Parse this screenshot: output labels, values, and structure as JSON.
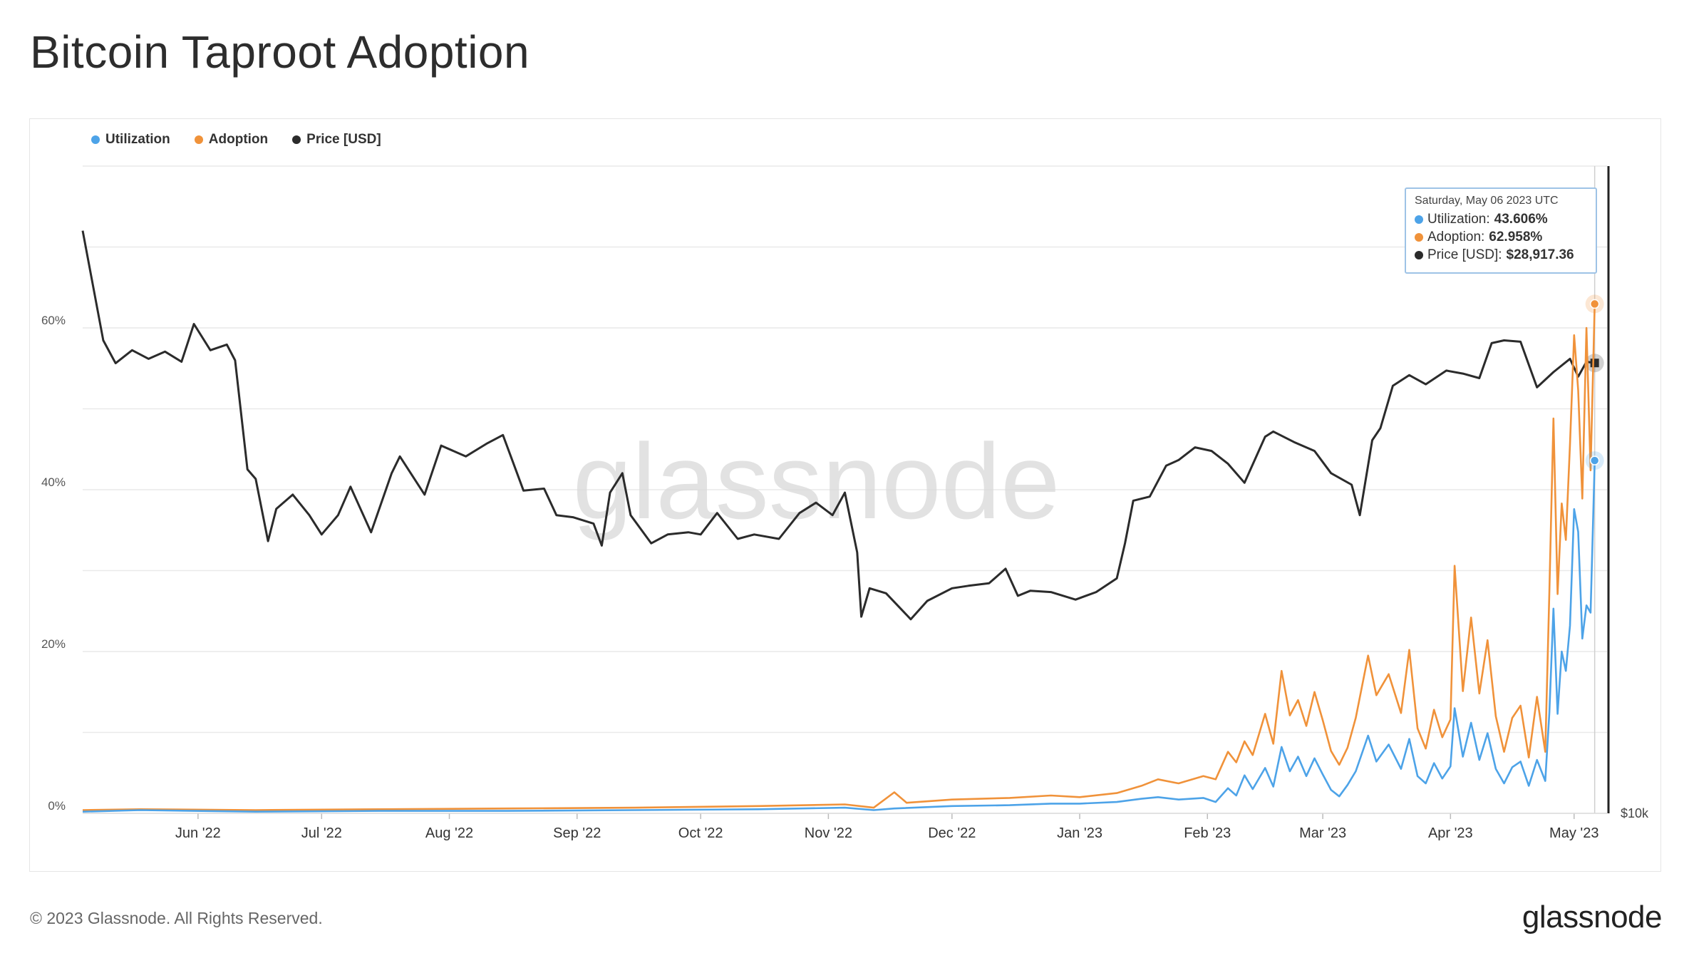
{
  "page": {
    "title": "Bitcoin Taproot Adoption",
    "copyright": "© 2023 Glassnode. All Rights Reserved.",
    "logo_text": "glassnode",
    "watermark": "glassnode"
  },
  "colors": {
    "utilization": "#4da3e8",
    "adoption": "#f0923a",
    "price": "#2b2b2b",
    "grid": "#e9e9e9",
    "watermark": "#d9d9d9"
  },
  "legend": [
    {
      "label": "Utilization",
      "color": "#4da3e8"
    },
    {
      "label": "Adoption",
      "color": "#f0923a"
    },
    {
      "label": "Price [USD]",
      "color": "#2b2b2b"
    }
  ],
  "tooltip": {
    "date": "Saturday, May 06 2023 UTC",
    "rows": [
      {
        "label": "Utilization:",
        "value": "43.606%",
        "color": "#4da3e8"
      },
      {
        "label": "Adoption:",
        "value": "62.958%",
        "color": "#f0923a"
      },
      {
        "label": "Price [USD]:",
        "value": "$28,917.36",
        "color": "#2b2b2b"
      }
    ]
  },
  "chart_data": {
    "type": "line",
    "x_ticks": [
      "Jun '22",
      "Jul '22",
      "Aug '22",
      "Sep '22",
      "Oct '22",
      "Nov '22",
      "Dec '22",
      "Jan '23",
      "Feb '23",
      "Mar '23",
      "Apr '23",
      "May '23"
    ],
    "x_tick_dates": [
      "2022-06-01",
      "2022-07-01",
      "2022-08-01",
      "2022-09-01",
      "2022-10-01",
      "2022-11-01",
      "2022-12-01",
      "2023-01-01",
      "2023-02-01",
      "2023-03-01",
      "2023-04-01",
      "2023-05-01"
    ],
    "x_range": [
      "2022-05-04",
      "2023-05-09"
    ],
    "y_left_ticks": [
      "0%",
      "20%",
      "40%",
      "60%"
    ],
    "y_left_range": [
      0,
      80
    ],
    "y_right_ticks": [
      "$10k"
    ],
    "y_right_scale": "log",
    "y_right_range": [
      10000,
      46000
    ],
    "grid": true,
    "legend_position": "top-left",
    "series": [
      {
        "name": "Price [USD]",
        "axis": "right",
        "points": [
          [
            "2022-05-04",
            39500
          ],
          [
            "2022-05-09",
            30500
          ],
          [
            "2022-05-12",
            28900
          ],
          [
            "2022-05-16",
            29800
          ],
          [
            "2022-05-20",
            29200
          ],
          [
            "2022-05-24",
            29700
          ],
          [
            "2022-05-28",
            29000
          ],
          [
            "2022-05-31",
            31700
          ],
          [
            "2022-06-04",
            29800
          ],
          [
            "2022-06-08",
            30200
          ],
          [
            "2022-06-10",
            29100
          ],
          [
            "2022-06-13",
            22500
          ],
          [
            "2022-06-15",
            22000
          ],
          [
            "2022-06-18",
            19000
          ],
          [
            "2022-06-20",
            20500
          ],
          [
            "2022-06-24",
            21200
          ],
          [
            "2022-06-28",
            20200
          ],
          [
            "2022-07-01",
            19300
          ],
          [
            "2022-07-05",
            20200
          ],
          [
            "2022-07-08",
            21600
          ],
          [
            "2022-07-13",
            19400
          ],
          [
            "2022-07-18",
            22300
          ],
          [
            "2022-07-20",
            23200
          ],
          [
            "2022-07-26",
            21200
          ],
          [
            "2022-07-30",
            23800
          ],
          [
            "2022-08-05",
            23200
          ],
          [
            "2022-08-10",
            23900
          ],
          [
            "2022-08-14",
            24400
          ],
          [
            "2022-08-19",
            21400
          ],
          [
            "2022-08-24",
            21500
          ],
          [
            "2022-08-27",
            20200
          ],
          [
            "2022-08-31",
            20100
          ],
          [
            "2022-09-05",
            19800
          ],
          [
            "2022-09-07",
            18800
          ],
          [
            "2022-09-09",
            21300
          ],
          [
            "2022-09-12",
            22300
          ],
          [
            "2022-09-14",
            20200
          ],
          [
            "2022-09-19",
            18900
          ],
          [
            "2022-09-23",
            19300
          ],
          [
            "2022-09-28",
            19400
          ],
          [
            "2022-10-01",
            19300
          ],
          [
            "2022-10-05",
            20300
          ],
          [
            "2022-10-10",
            19100
          ],
          [
            "2022-10-14",
            19300
          ],
          [
            "2022-10-20",
            19100
          ],
          [
            "2022-10-25",
            20300
          ],
          [
            "2022-10-29",
            20800
          ],
          [
            "2022-11-02",
            20200
          ],
          [
            "2022-11-05",
            21300
          ],
          [
            "2022-11-08",
            18500
          ],
          [
            "2022-11-09",
            15900
          ],
          [
            "2022-11-11",
            17000
          ],
          [
            "2022-11-15",
            16800
          ],
          [
            "2022-11-21",
            15800
          ],
          [
            "2022-11-25",
            16500
          ],
          [
            "2022-12-01",
            17000
          ],
          [
            "2022-12-05",
            17100
          ],
          [
            "2022-12-10",
            17200
          ],
          [
            "2022-12-14",
            17800
          ],
          [
            "2022-12-17",
            16700
          ],
          [
            "2022-12-20",
            16900
          ],
          [
            "2022-12-25",
            16850
          ],
          [
            "2022-12-31",
            16550
          ],
          [
            "2023-01-05",
            16850
          ],
          [
            "2023-01-10",
            17400
          ],
          [
            "2023-01-12",
            18900
          ],
          [
            "2023-01-14",
            20900
          ],
          [
            "2023-01-18",
            21100
          ],
          [
            "2023-01-22",
            22700
          ],
          [
            "2023-01-25",
            23000
          ],
          [
            "2023-01-29",
            23700
          ],
          [
            "2023-02-02",
            23500
          ],
          [
            "2023-02-06",
            22800
          ],
          [
            "2023-02-10",
            21800
          ],
          [
            "2023-02-15",
            24300
          ],
          [
            "2023-02-17",
            24600
          ],
          [
            "2023-02-22",
            24000
          ],
          [
            "2023-02-27",
            23500
          ],
          [
            "2023-03-03",
            22300
          ],
          [
            "2023-03-08",
            21700
          ],
          [
            "2023-03-10",
            20200
          ],
          [
            "2023-03-13",
            24100
          ],
          [
            "2023-03-15",
            24800
          ],
          [
            "2023-03-18",
            27400
          ],
          [
            "2023-03-22",
            28100
          ],
          [
            "2023-03-26",
            27500
          ],
          [
            "2023-03-31",
            28400
          ],
          [
            "2023-04-04",
            28200
          ],
          [
            "2023-04-08",
            27900
          ],
          [
            "2023-04-11",
            30300
          ],
          [
            "2023-04-14",
            30500
          ],
          [
            "2023-04-18",
            30400
          ],
          [
            "2023-04-20",
            28800
          ],
          [
            "2023-04-22",
            27300
          ],
          [
            "2023-04-26",
            28300
          ],
          [
            "2023-04-30",
            29200
          ],
          [
            "2023-05-02",
            28000
          ],
          [
            "2023-05-04",
            29000
          ],
          [
            "2023-05-06",
            28917
          ]
        ]
      },
      {
        "name": "Adoption",
        "axis": "left",
        "points": [
          [
            "2022-05-04",
            0.4
          ],
          [
            "2022-05-18",
            0.5
          ],
          [
            "2022-06-15",
            0.4
          ],
          [
            "2022-07-15",
            0.5
          ],
          [
            "2022-08-15",
            0.6
          ],
          [
            "2022-09-15",
            0.7
          ],
          [
            "2022-10-15",
            0.9
          ],
          [
            "2022-11-05",
            1.1
          ],
          [
            "2022-11-12",
            0.7
          ],
          [
            "2022-11-17",
            2.6
          ],
          [
            "2022-11-20",
            1.3
          ],
          [
            "2022-12-01",
            1.7
          ],
          [
            "2022-12-15",
            1.9
          ],
          [
            "2022-12-25",
            2.2
          ],
          [
            "2023-01-01",
            2.0
          ],
          [
            "2023-01-10",
            2.5
          ],
          [
            "2023-01-16",
            3.4
          ],
          [
            "2023-01-20",
            4.2
          ],
          [
            "2023-01-25",
            3.7
          ],
          [
            "2023-01-31",
            4.6
          ],
          [
            "2023-02-03",
            4.2
          ],
          [
            "2023-02-06",
            7.6
          ],
          [
            "2023-02-08",
            6.3
          ],
          [
            "2023-02-10",
            8.9
          ],
          [
            "2023-02-12",
            7.2
          ],
          [
            "2023-02-15",
            12.3
          ],
          [
            "2023-02-17",
            8.6
          ],
          [
            "2023-02-19",
            17.6
          ],
          [
            "2023-02-21",
            12.1
          ],
          [
            "2023-02-23",
            14.0
          ],
          [
            "2023-02-25",
            10.8
          ],
          [
            "2023-02-27",
            15.0
          ],
          [
            "2023-03-01",
            11.5
          ],
          [
            "2023-03-03",
            7.7
          ],
          [
            "2023-03-05",
            6.0
          ],
          [
            "2023-03-07",
            8.1
          ],
          [
            "2023-03-09",
            11.8
          ],
          [
            "2023-03-12",
            19.5
          ],
          [
            "2023-03-14",
            14.6
          ],
          [
            "2023-03-17",
            17.2
          ],
          [
            "2023-03-20",
            12.4
          ],
          [
            "2023-03-22",
            20.2
          ],
          [
            "2023-03-24",
            10.5
          ],
          [
            "2023-03-26",
            8.0
          ],
          [
            "2023-03-28",
            12.8
          ],
          [
            "2023-03-30",
            9.4
          ],
          [
            "2023-04-01",
            11.6
          ],
          [
            "2023-04-02",
            30.6
          ],
          [
            "2023-04-04",
            15.1
          ],
          [
            "2023-04-06",
            24.2
          ],
          [
            "2023-04-08",
            14.8
          ],
          [
            "2023-04-10",
            21.4
          ],
          [
            "2023-04-12",
            12.0
          ],
          [
            "2023-04-14",
            7.6
          ],
          [
            "2023-04-16",
            11.8
          ],
          [
            "2023-04-18",
            13.3
          ],
          [
            "2023-04-20",
            6.9
          ],
          [
            "2023-04-22",
            14.4
          ],
          [
            "2023-04-24",
            7.6
          ],
          [
            "2023-04-25",
            27.5
          ],
          [
            "2023-04-26",
            48.8
          ],
          [
            "2023-04-27",
            27.1
          ],
          [
            "2023-04-28",
            38.3
          ],
          [
            "2023-04-29",
            33.8
          ],
          [
            "2023-04-30",
            45.6
          ],
          [
            "2023-05-01",
            59.1
          ],
          [
            "2023-05-02",
            52.3
          ],
          [
            "2023-05-03",
            38.9
          ],
          [
            "2023-05-04",
            60.0
          ],
          [
            "2023-05-05",
            42.4
          ],
          [
            "2023-05-06",
            62.958
          ]
        ]
      },
      {
        "name": "Utilization",
        "axis": "left",
        "points": [
          [
            "2022-05-04",
            0.2
          ],
          [
            "2022-05-18",
            0.4
          ],
          [
            "2022-06-15",
            0.2
          ],
          [
            "2022-07-15",
            0.3
          ],
          [
            "2022-08-15",
            0.3
          ],
          [
            "2022-09-15",
            0.4
          ],
          [
            "2022-10-15",
            0.5
          ],
          [
            "2022-11-05",
            0.7
          ],
          [
            "2022-11-12",
            0.4
          ],
          [
            "2022-11-17",
            0.6
          ],
          [
            "2022-12-01",
            0.9
          ],
          [
            "2022-12-15",
            1.0
          ],
          [
            "2022-12-25",
            1.2
          ],
          [
            "2023-01-01",
            1.2
          ],
          [
            "2023-01-10",
            1.4
          ],
          [
            "2023-01-16",
            1.8
          ],
          [
            "2023-01-20",
            2.0
          ],
          [
            "2023-01-25",
            1.7
          ],
          [
            "2023-01-31",
            1.9
          ],
          [
            "2023-02-03",
            1.4
          ],
          [
            "2023-02-06",
            3.1
          ],
          [
            "2023-02-08",
            2.2
          ],
          [
            "2023-02-10",
            4.7
          ],
          [
            "2023-02-12",
            3.0
          ],
          [
            "2023-02-15",
            5.6
          ],
          [
            "2023-02-17",
            3.3
          ],
          [
            "2023-02-19",
            8.2
          ],
          [
            "2023-02-21",
            5.2
          ],
          [
            "2023-02-23",
            7.0
          ],
          [
            "2023-02-25",
            4.6
          ],
          [
            "2023-02-27",
            6.8
          ],
          [
            "2023-03-01",
            4.8
          ],
          [
            "2023-03-03",
            2.9
          ],
          [
            "2023-03-05",
            2.1
          ],
          [
            "2023-03-07",
            3.5
          ],
          [
            "2023-03-09",
            5.2
          ],
          [
            "2023-03-12",
            9.6
          ],
          [
            "2023-03-14",
            6.4
          ],
          [
            "2023-03-17",
            8.5
          ],
          [
            "2023-03-20",
            5.5
          ],
          [
            "2023-03-22",
            9.2
          ],
          [
            "2023-03-24",
            4.6
          ],
          [
            "2023-03-26",
            3.7
          ],
          [
            "2023-03-28",
            6.2
          ],
          [
            "2023-03-30",
            4.3
          ],
          [
            "2023-04-01",
            5.8
          ],
          [
            "2023-04-02",
            13.0
          ],
          [
            "2023-04-04",
            7.0
          ],
          [
            "2023-04-06",
            11.2
          ],
          [
            "2023-04-08",
            6.6
          ],
          [
            "2023-04-10",
            9.9
          ],
          [
            "2023-04-12",
            5.5
          ],
          [
            "2023-04-14",
            3.7
          ],
          [
            "2023-04-16",
            5.7
          ],
          [
            "2023-04-18",
            6.4
          ],
          [
            "2023-04-20",
            3.4
          ],
          [
            "2023-04-22",
            6.6
          ],
          [
            "2023-04-24",
            4.0
          ],
          [
            "2023-04-25",
            12.5
          ],
          [
            "2023-04-26",
            25.3
          ],
          [
            "2023-04-27",
            12.3
          ],
          [
            "2023-04-28",
            20.0
          ],
          [
            "2023-04-29",
            17.6
          ],
          [
            "2023-04-30",
            23.2
          ],
          [
            "2023-05-01",
            37.6
          ],
          [
            "2023-05-02",
            34.8
          ],
          [
            "2023-05-03",
            21.6
          ],
          [
            "2023-05-04",
            25.7
          ],
          [
            "2023-05-05",
            24.8
          ],
          [
            "2023-05-06",
            43.606
          ]
        ]
      }
    ]
  }
}
